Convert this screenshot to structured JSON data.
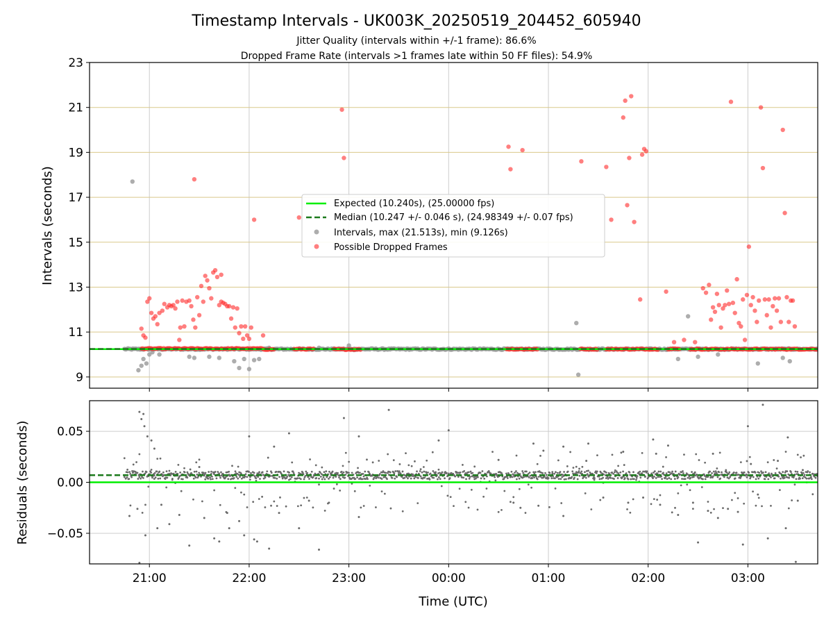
{
  "title": "Timestamp Intervals - UK003K_20250519_204452_605940",
  "subtitle_1": "Jitter Quality (intervals within +/-1 frame): 86.6%",
  "subtitle_2": "Dropped Frame Rate (intervals >1 frames late within 50 FF files): 54.9%",
  "xlabel": "Time (UTC)",
  "colors": {
    "expected": "#00ee00",
    "median": "#1b7a1b",
    "intervals": "#999999",
    "dropped": "#ff2a2a",
    "hgrid_top": "#d9c88a",
    "grid": "#cccccc",
    "residual_points": "#6a6a6a"
  },
  "chart_data": [
    {
      "type": "scatter",
      "ylabel": "Intervals (seconds)",
      "x_unit": "hours since 00:00 UTC",
      "xlim": [
        -3.6,
        3.7
      ],
      "ylim": [
        8.5,
        23
      ],
      "xticks": [
        -3,
        -2,
        -1,
        0,
        1,
        2,
        3
      ],
      "xtick_labels": [
        "21:00",
        "22:00",
        "23:00",
        "00:00",
        "01:00",
        "02:00",
        "03:00"
      ],
      "yticks": [
        9,
        11,
        13,
        15,
        17,
        19,
        21,
        23
      ],
      "ytick_labels": [
        "9",
        "11",
        "13",
        "15",
        "17",
        "19",
        "21",
        "23"
      ],
      "hgrid_values": [
        9,
        11,
        13,
        15,
        17,
        19,
        21,
        23
      ],
      "grid": true,
      "legend_position": "center",
      "lines": [
        {
          "name": "Expected (10.240s), (25.00000 fps)",
          "y": 10.24,
          "style": "solid"
        },
        {
          "name": "Median (10.247 +/- 0.046 s), (24.98349 +/- 0.07 fps)",
          "y": 10.247,
          "style": "dashed"
        }
      ],
      "series_intervals_name": "Intervals, max (21.513s), min (9.126s)",
      "series_dropped_name": "Possible Dropped Frames",
      "intervals_baseline": {
        "y": 10.24,
        "x_start": -3.25,
        "x_end": 3.7
      },
      "intervals_outliers": [
        [
          -3.17,
          17.7
        ],
        [
          -3.11,
          9.3
        ],
        [
          -3.08,
          9.5
        ],
        [
          -3.06,
          9.8
        ],
        [
          -3.03,
          9.6
        ],
        [
          -3.0,
          10.0
        ],
        [
          -2.97,
          10.1
        ],
        [
          -2.9,
          10.0
        ],
        [
          -2.6,
          9.9
        ],
        [
          -2.55,
          9.85
        ],
        [
          -2.4,
          9.9
        ],
        [
          -2.3,
          9.85
        ],
        [
          -2.15,
          9.7
        ],
        [
          -2.1,
          9.4
        ],
        [
          -2.05,
          9.8
        ],
        [
          -2.0,
          9.35
        ],
        [
          -1.95,
          9.75
        ],
        [
          -1.9,
          9.8
        ],
        [
          -1.8,
          10.3
        ],
        [
          -1.3,
          10.3
        ],
        [
          -1.0,
          10.4
        ],
        [
          -0.95,
          10.2
        ],
        [
          1.28,
          11.4
        ],
        [
          1.3,
          9.1
        ],
        [
          2.4,
          11.7
        ],
        [
          2.3,
          9.8
        ],
        [
          2.5,
          9.9
        ],
        [
          2.7,
          10.0
        ],
        [
          3.1,
          9.6
        ],
        [
          3.35,
          9.85
        ],
        [
          3.42,
          9.7
        ]
      ],
      "dropped_frames": [
        [
          -3.08,
          11.15
        ],
        [
          -3.06,
          10.85
        ],
        [
          -3.04,
          10.75
        ],
        [
          -3.02,
          12.35
        ],
        [
          -3.0,
          12.5
        ],
        [
          -2.98,
          11.85
        ],
        [
          -2.96,
          11.6
        ],
        [
          -2.94,
          11.7
        ],
        [
          -2.92,
          11.35
        ],
        [
          -2.9,
          11.85
        ],
        [
          -2.87,
          11.95
        ],
        [
          -2.85,
          12.25
        ],
        [
          -2.82,
          12.1
        ],
        [
          -2.8,
          12.2
        ],
        [
          -2.78,
          12.15
        ],
        [
          -2.76,
          12.2
        ],
        [
          -2.74,
          12.05
        ],
        [
          -2.72,
          12.35
        ],
        [
          -2.7,
          10.65
        ],
        [
          -2.69,
          11.2
        ],
        [
          -2.67,
          12.4
        ],
        [
          -2.65,
          11.25
        ],
        [
          -2.63,
          12.35
        ],
        [
          -2.6,
          12.4
        ],
        [
          -2.58,
          12.15
        ],
        [
          -2.56,
          11.55
        ],
        [
          -2.54,
          11.2
        ],
        [
          -2.52,
          12.55
        ],
        [
          -2.5,
          11.75
        ],
        [
          -2.48,
          13.05
        ],
        [
          -2.46,
          12.35
        ],
        [
          -2.44,
          13.5
        ],
        [
          -2.42,
          13.3
        ],
        [
          -2.4,
          12.95
        ],
        [
          -2.38,
          12.5
        ],
        [
          -2.36,
          13.65
        ],
        [
          -2.34,
          13.75
        ],
        [
          -2.32,
          13.45
        ],
        [
          -2.3,
          12.2
        ],
        [
          -2.28,
          12.35
        ],
        [
          -2.26,
          12.3
        ],
        [
          -2.24,
          12.25
        ],
        [
          -2.22,
          12.15
        ],
        [
          -2.2,
          12.15
        ],
        [
          -2.18,
          11.6
        ],
        [
          -2.16,
          12.1
        ],
        [
          -2.14,
          11.2
        ],
        [
          -2.12,
          12.05
        ],
        [
          -2.1,
          10.95
        ],
        [
          -2.08,
          11.25
        ],
        [
          -2.06,
          10.7
        ],
        [
          -2.04,
          11.25
        ],
        [
          -2.02,
          10.85
        ],
        [
          -2.0,
          10.7
        ],
        [
          -1.98,
          11.2
        ],
        [
          -2.28,
          13.55
        ],
        [
          -2.55,
          17.8
        ],
        [
          -1.95,
          16.0
        ],
        [
          -1.86,
          10.85
        ],
        [
          -1.5,
          16.1
        ],
        [
          -1.07,
          20.9
        ],
        [
          -1.05,
          18.75
        ],
        [
          0.6,
          19.25
        ],
        [
          0.62,
          18.25
        ],
        [
          0.74,
          19.1
        ],
        [
          1.33,
          18.6
        ],
        [
          1.58,
          18.35
        ],
        [
          1.63,
          16.0
        ],
        [
          1.75,
          20.55
        ],
        [
          1.77,
          21.3
        ],
        [
          1.79,
          16.65
        ],
        [
          1.81,
          18.75
        ],
        [
          1.83,
          21.5
        ],
        [
          1.86,
          15.9
        ],
        [
          1.92,
          12.45
        ],
        [
          1.94,
          18.9
        ],
        [
          1.96,
          19.15
        ],
        [
          1.98,
          19.05
        ],
        [
          2.18,
          12.8
        ],
        [
          2.26,
          10.55
        ],
        [
          2.36,
          10.65
        ],
        [
          2.47,
          10.55
        ],
        [
          2.55,
          12.95
        ],
        [
          2.58,
          12.75
        ],
        [
          2.61,
          13.1
        ],
        [
          2.63,
          11.55
        ],
        [
          2.65,
          12.1
        ],
        [
          2.67,
          11.9
        ],
        [
          2.69,
          12.7
        ],
        [
          2.71,
          12.2
        ],
        [
          2.73,
          11.2
        ],
        [
          2.75,
          12.05
        ],
        [
          2.77,
          12.2
        ],
        [
          2.79,
          12.85
        ],
        [
          2.81,
          12.25
        ],
        [
          2.83,
          21.25
        ],
        [
          2.85,
          12.3
        ],
        [
          2.87,
          11.85
        ],
        [
          2.89,
          13.35
        ],
        [
          2.91,
          11.4
        ],
        [
          2.93,
          11.25
        ],
        [
          2.95,
          12.45
        ],
        [
          2.97,
          10.65
        ],
        [
          2.99,
          12.65
        ],
        [
          3.01,
          14.8
        ],
        [
          3.03,
          12.2
        ],
        [
          3.05,
          12.55
        ],
        [
          3.07,
          11.95
        ],
        [
          3.09,
          11.45
        ],
        [
          3.11,
          12.4
        ],
        [
          3.13,
          21.0
        ],
        [
          3.15,
          18.3
        ],
        [
          3.17,
          12.45
        ],
        [
          3.19,
          11.75
        ],
        [
          3.21,
          12.45
        ],
        [
          3.23,
          11.2
        ],
        [
          3.25,
          12.15
        ],
        [
          3.27,
          12.5
        ],
        [
          3.29,
          11.95
        ],
        [
          3.31,
          12.5
        ],
        [
          3.33,
          11.45
        ],
        [
          3.35,
          20.0
        ],
        [
          3.37,
          16.3
        ],
        [
          3.39,
          12.55
        ],
        [
          3.41,
          11.45
        ],
        [
          3.43,
          12.4
        ],
        [
          3.45,
          12.4
        ],
        [
          3.47,
          11.25
        ]
      ],
      "dropped_bands": [
        {
          "x_start": -3.08,
          "x_end": -1.85,
          "y": 10.26
        },
        {
          "x_start": -1.85,
          "x_end": -1.75,
          "y": 10.23
        },
        {
          "x_start": -1.55,
          "x_end": -1.35,
          "y": 10.24
        },
        {
          "x_start": -1.15,
          "x_end": -0.88,
          "y": 10.23
        },
        {
          "x_start": 0.58,
          "x_end": 0.9,
          "y": 10.24
        },
        {
          "x_start": 1.32,
          "x_end": 1.5,
          "y": 10.24
        },
        {
          "x_start": 1.58,
          "x_end": 2.1,
          "y": 10.24
        },
        {
          "x_start": 2.2,
          "x_end": 2.32,
          "y": 10.25
        },
        {
          "x_start": 2.42,
          "x_end": 3.7,
          "y": 10.24
        }
      ]
    },
    {
      "type": "scatter",
      "ylabel": "Residuals (seconds)",
      "xlim": [
        -3.6,
        3.7
      ],
      "ylim": [
        -0.08,
        0.08
      ],
      "yticks": [
        -0.05,
        0.0,
        0.05
      ],
      "ytick_labels": [
        "−0.05",
        "0.00",
        "0.05"
      ],
      "xticks": [
        -3,
        -2,
        -1,
        0,
        1,
        2,
        3
      ],
      "xtick_labels": [
        "21:00",
        "22:00",
        "23:00",
        "00:00",
        "01:00",
        "02:00",
        "03:00"
      ],
      "grid": true,
      "lines": [
        {
          "name": "Expected",
          "y": 0.0,
          "style": "solid"
        },
        {
          "name": "Median",
          "y": 0.007,
          "style": "dashed"
        }
      ],
      "residual_core": {
        "x_start": -3.25,
        "x_end": 3.7,
        "center": 0.007,
        "spread": 0.004
      },
      "residual_outliers": [
        [
          -3.1,
          0.069
        ],
        [
          -3.08,
          0.062
        ],
        [
          -3.06,
          0.067
        ],
        [
          -3.05,
          0.055
        ],
        [
          -3.02,
          0.045
        ],
        [
          -2.98,
          0.041
        ],
        [
          -2.95,
          0.033
        ],
        [
          -3.12,
          -0.026
        ],
        [
          -3.2,
          -0.033
        ],
        [
          -3.1,
          -0.079
        ],
        [
          -3.04,
          -0.052
        ],
        [
          -2.92,
          -0.045
        ],
        [
          -2.88,
          -0.022
        ],
        [
          -2.8,
          -0.041
        ],
        [
          -2.7,
          -0.032
        ],
        [
          -2.6,
          -0.062
        ],
        [
          -2.5,
          0.015
        ],
        [
          -2.45,
          -0.035
        ],
        [
          -2.35,
          -0.055
        ],
        [
          -2.3,
          -0.058
        ],
        [
          -2.22,
          -0.03
        ],
        [
          -2.2,
          -0.045
        ],
        [
          -2.1,
          -0.038
        ],
        [
          -2.05,
          -0.052
        ],
        [
          -2.0,
          0.045
        ],
        [
          -1.95,
          -0.056
        ],
        [
          -1.92,
          -0.058
        ],
        [
          -1.8,
          -0.065
        ],
        [
          -1.75,
          0.035
        ],
        [
          -1.7,
          -0.03
        ],
        [
          -1.6,
          0.048
        ],
        [
          -1.5,
          -0.045
        ],
        [
          -1.4,
          -0.018
        ],
        [
          -1.3,
          -0.066
        ],
        [
          -1.2,
          -0.02
        ],
        [
          -1.05,
          0.063
        ],
        [
          -0.9,
          0.045
        ],
        [
          -0.9,
          -0.034
        ],
        [
          -0.6,
          0.071
        ],
        [
          -0.1,
          0.041
        ],
        [
          0.0,
          0.051
        ],
        [
          0.5,
          0.022
        ],
        [
          0.65,
          -0.02
        ],
        [
          0.72,
          -0.025
        ],
        [
          0.85,
          0.038
        ],
        [
          0.9,
          -0.023
        ],
        [
          0.95,
          0.031
        ],
        [
          1.15,
          0.035
        ],
        [
          1.15,
          -0.033
        ],
        [
          1.38,
          0.021
        ],
        [
          1.4,
          0.038
        ],
        [
          1.55,
          -0.015
        ],
        [
          1.75,
          0.03
        ],
        [
          1.8,
          -0.02
        ],
        [
          1.95,
          -0.015
        ],
        [
          2.05,
          0.042
        ],
        [
          2.08,
          0.028
        ],
        [
          2.12,
          -0.022
        ],
        [
          2.2,
          0.036
        ],
        [
          2.3,
          -0.032
        ],
        [
          2.45,
          -0.02
        ],
        [
          2.5,
          -0.059
        ],
        [
          2.6,
          -0.028
        ],
        [
          2.65,
          0.028
        ],
        [
          2.7,
          -0.035
        ],
        [
          2.8,
          -0.026
        ],
        [
          2.9,
          -0.029
        ],
        [
          2.95,
          -0.061
        ],
        [
          3.0,
          0.055
        ],
        [
          3.03,
          0.018
        ],
        [
          3.1,
          -0.012
        ],
        [
          3.15,
          0.076
        ],
        [
          3.2,
          -0.055
        ],
        [
          3.3,
          0.021
        ],
        [
          3.38,
          -0.045
        ],
        [
          3.4,
          0.044
        ],
        [
          3.48,
          -0.078
        ],
        [
          3.5,
          -0.018
        ],
        [
          3.55,
          0.012
        ]
      ]
    }
  ]
}
